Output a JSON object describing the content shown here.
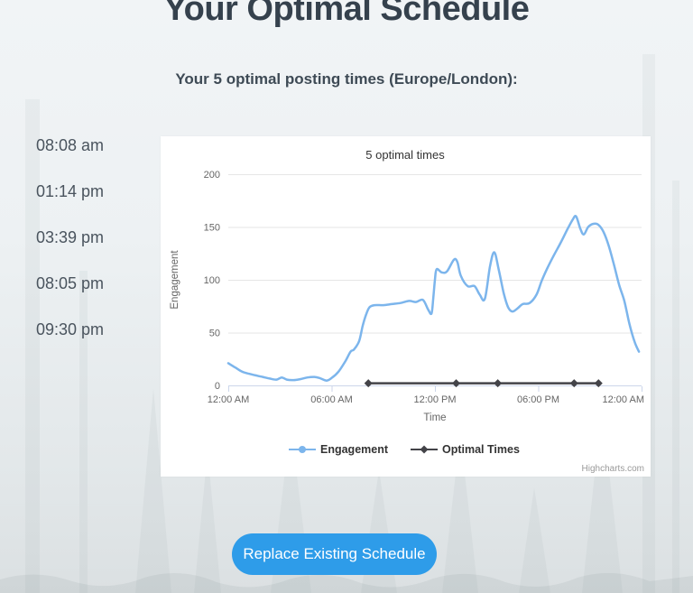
{
  "page": {
    "title": "Your Optimal Schedule",
    "subtitle": "Your 5 optimal posting times (Europe/London):"
  },
  "times": [
    "08:08 am",
    "01:14 pm",
    "03:39 pm",
    "08:05 pm",
    "09:30 pm"
  ],
  "button": {
    "label": "Replace Existing Schedule",
    "color": "#2e9ce9"
  },
  "chart_data": {
    "type": "line",
    "title": "5 optimal times",
    "xlabel": "Time",
    "ylabel": "Engagement",
    "ylim": [
      0,
      200
    ],
    "y_ticks": [
      0,
      50,
      100,
      150,
      200
    ],
    "x_ticks_hours": [
      0,
      6,
      12,
      18,
      24
    ],
    "x_tick_labels": [
      "12:00 AM",
      "06:00 AM",
      "12:00 PM",
      "06:00 PM",
      "12:00 AM"
    ],
    "grid": "horizontal",
    "legend_position": "bottom-center",
    "credit": "Highcharts.com",
    "colors": {
      "grid": "#e6e6e6",
      "axis": "#ccd6eb",
      "tick_text": "#666666",
      "title_text": "#333333",
      "credit_text": "#999999"
    },
    "series": [
      {
        "name": "Engagement",
        "color": "#7cb5ec",
        "marker": "circle",
        "points": [
          [
            0,
            21
          ],
          [
            0.4,
            17
          ],
          [
            0.8,
            13
          ],
          [
            1.2,
            11
          ],
          [
            1.6,
            9.5
          ],
          [
            2,
            8
          ],
          [
            2.4,
            6.5
          ],
          [
            2.8,
            5.5
          ],
          [
            3.1,
            7.5
          ],
          [
            3.4,
            5.5
          ],
          [
            3.8,
            5
          ],
          [
            4.2,
            6
          ],
          [
            4.6,
            7.5
          ],
          [
            5,
            8
          ],
          [
            5.3,
            7
          ],
          [
            5.7,
            4.5
          ],
          [
            6,
            7
          ],
          [
            6.4,
            13
          ],
          [
            6.8,
            23
          ],
          [
            7.1,
            32
          ],
          [
            7.3,
            34
          ],
          [
            7.6,
            42
          ],
          [
            7.8,
            56
          ],
          [
            8,
            67
          ],
          [
            8.2,
            74
          ],
          [
            8.5,
            76
          ],
          [
            9,
            76
          ],
          [
            9.5,
            77
          ],
          [
            10,
            78
          ],
          [
            10.5,
            80
          ],
          [
            10.9,
            79
          ],
          [
            11.3,
            81
          ],
          [
            11.6,
            72
          ],
          [
            11.8,
            68
          ],
          [
            11.9,
            82
          ],
          [
            12,
            100
          ],
          [
            12.1,
            110
          ],
          [
            12.4,
            107
          ],
          [
            12.7,
            108
          ],
          [
            13.1,
            119
          ],
          [
            13.3,
            117
          ],
          [
            13.5,
            104
          ],
          [
            13.9,
            94
          ],
          [
            14.3,
            94
          ],
          [
            14.6,
            86
          ],
          [
            14.9,
            82
          ],
          [
            15.2,
            113
          ],
          [
            15.45,
            126
          ],
          [
            15.7,
            110
          ],
          [
            16,
            87
          ],
          [
            16.25,
            74
          ],
          [
            16.5,
            70
          ],
          [
            16.8,
            73
          ],
          [
            17.1,
            77
          ],
          [
            17.5,
            78
          ],
          [
            17.9,
            86
          ],
          [
            18.2,
            99
          ],
          [
            18.5,
            110
          ],
          [
            18.9,
            123
          ],
          [
            19.3,
            135
          ],
          [
            19.7,
            148
          ],
          [
            20,
            157
          ],
          [
            20.2,
            160
          ],
          [
            20.45,
            148
          ],
          [
            20.65,
            143
          ],
          [
            20.9,
            150
          ],
          [
            21.2,
            153
          ],
          [
            21.5,
            152
          ],
          [
            21.8,
            145
          ],
          [
            22.1,
            132
          ],
          [
            22.4,
            114
          ],
          [
            22.7,
            95
          ],
          [
            23,
            80
          ],
          [
            23.3,
            58
          ],
          [
            23.6,
            41
          ],
          [
            23.85,
            32
          ]
        ]
      },
      {
        "name": "Optimal Times",
        "color": "#434348",
        "marker": "diamond",
        "y": 2,
        "hours": [
          8.133,
          13.233,
          15.65,
          20.083,
          21.5
        ]
      }
    ]
  }
}
